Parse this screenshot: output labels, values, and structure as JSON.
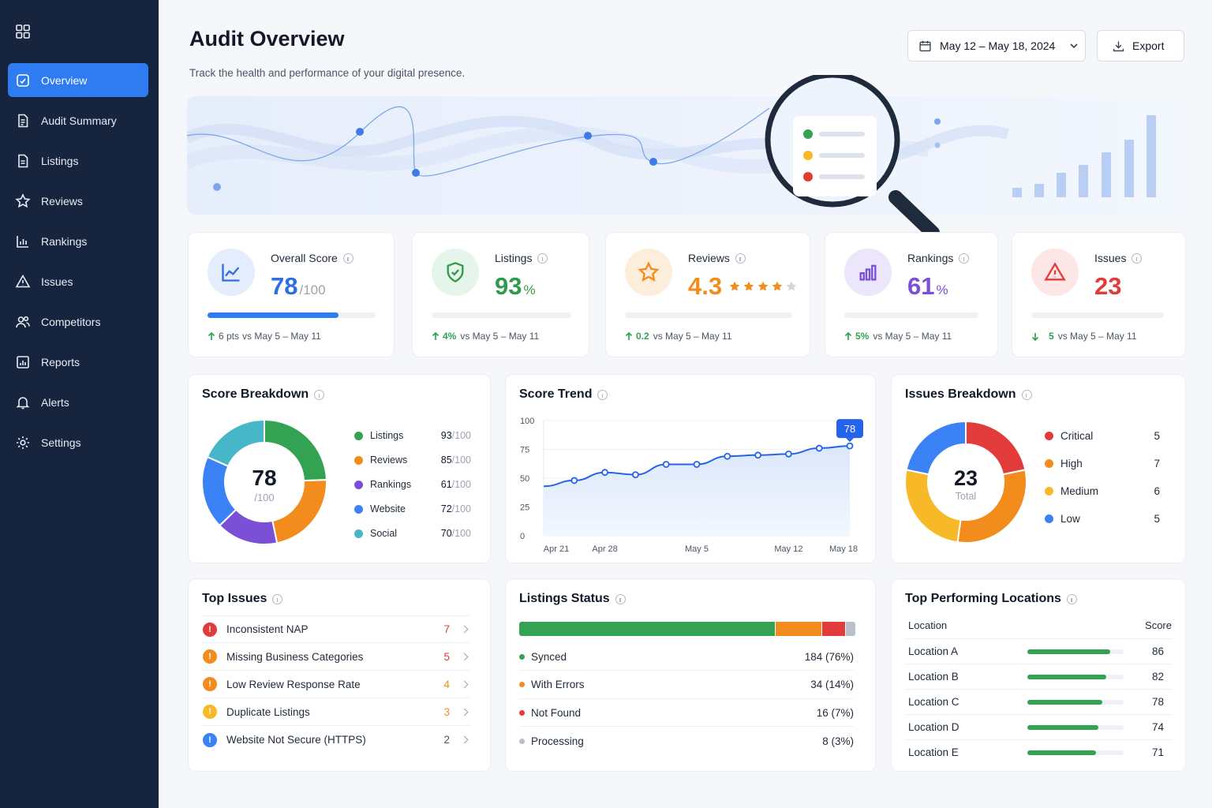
{
  "sidebar": {
    "items": [
      {
        "label": "Overview",
        "icon": "overview-icon",
        "active": true
      },
      {
        "label": "Audit Summary",
        "icon": "document-icon"
      },
      {
        "label": "Listings",
        "icon": "list-icon"
      },
      {
        "label": "Reviews",
        "icon": "star-icon"
      },
      {
        "label": "Rankings",
        "icon": "bar-chart-icon"
      },
      {
        "label": "Issues",
        "icon": "warning-icon"
      },
      {
        "label": "Competitors",
        "icon": "users-icon"
      },
      {
        "label": "Reports",
        "icon": "report-icon"
      },
      {
        "label": "Alerts",
        "icon": "bell-icon"
      },
      {
        "label": "Settings",
        "icon": "gear-icon"
      }
    ]
  },
  "header": {
    "title": "Audit Overview",
    "subtitle": "Track the health and performance of your digital presence.",
    "date_range": "May 12 – May 18, 2024",
    "export_label": "Export"
  },
  "kpis": {
    "overall": {
      "label": "Overall Score",
      "value": "78",
      "unit": "/100",
      "progress": 0.78,
      "delta": "6 pts",
      "compare": "vs May 5 – May 11"
    },
    "listings": {
      "label": "Listings",
      "value": "93",
      "unit": "%",
      "delta": "4%",
      "compare": "vs May 5 – May 11"
    },
    "reviews": {
      "label": "Reviews",
      "value": "4.3",
      "stars": 4,
      "delta": "0.2",
      "compare": "vs May 5 – May 11"
    },
    "rankings": {
      "label": "Rankings",
      "value": "61",
      "unit": "%",
      "delta": "5%",
      "compare": "vs May 5 – May 11"
    },
    "issues": {
      "label": "Issues",
      "value": "23",
      "delta": "5",
      "compare": "vs May 5 – May 11"
    }
  },
  "score_breakdown": {
    "title": "Score Breakdown",
    "center_value": "78",
    "center_label": "/100",
    "items": [
      {
        "name": "Listings",
        "score": "93",
        "max": "/100",
        "color": "#33a353"
      },
      {
        "name": "Reviews",
        "score": "85",
        "max": "/100",
        "color": "#f28c1c"
      },
      {
        "name": "Rankings",
        "score": "61",
        "max": "/100",
        "color": "#7b4fd6"
      },
      {
        "name": "Website",
        "score": "72",
        "max": "/100",
        "color": "#3b82f6"
      },
      {
        "name": "Social",
        "score": "70",
        "max": "/100",
        "color": "#45b7c9"
      }
    ]
  },
  "score_trend": {
    "title": "Score Trend",
    "callout": "78"
  },
  "chart_data": {
    "type": "line",
    "x": [
      "Apr 21",
      "Apr 24",
      "Apr 28",
      "May 1",
      "May 3",
      "May 5",
      "May 8",
      "May 10",
      "May 12",
      "May 15",
      "May 18"
    ],
    "tick_labels": [
      "Apr 21",
      "Apr 28",
      "May 5",
      "May 12",
      "May 18"
    ],
    "y_ticks": [
      "100",
      "75",
      "50",
      "25",
      "0"
    ],
    "values": [
      43,
      48,
      55,
      53,
      62,
      62,
      69,
      70,
      71,
      76,
      78
    ],
    "ylim": [
      0,
      100
    ]
  },
  "issues_breakdown": {
    "title": "Issues Breakdown",
    "total": "23",
    "total_label": "Total",
    "items": [
      {
        "name": "Critical",
        "count": "5",
        "color": "#e23b3b"
      },
      {
        "name": "High",
        "count": "7",
        "color": "#f28c1c"
      },
      {
        "name": "Medium",
        "count": "6",
        "color": "#f7b928"
      },
      {
        "name": "Low",
        "count": "5",
        "color": "#3b82f6"
      }
    ]
  },
  "top_issues": {
    "title": "Top Issues",
    "items": [
      {
        "name": "Inconsistent NAP",
        "count": "7",
        "color": "#e23b3b",
        "count_color": "#e23b3b"
      },
      {
        "name": "Missing Business Categories",
        "count": "5",
        "color": "#f28c1c",
        "count_color": "#e23b3b"
      },
      {
        "name": "Low Review Response Rate",
        "count": "4",
        "color": "#f28c1c",
        "count_color": "#f28c1c"
      },
      {
        "name": "Duplicate Listings",
        "count": "3",
        "color": "#f7b928",
        "count_color": "#f28c1c"
      },
      {
        "name": "Website Not Secure (HTTPS)",
        "count": "2",
        "color": "#3b82f6",
        "count_color": "#4b5563"
      }
    ]
  },
  "listings_status": {
    "title": "Listings Status",
    "items": [
      {
        "name": "Synced",
        "value": "184 (76%)",
        "share": 0.76,
        "color": "#33a353"
      },
      {
        "name": "With Errors",
        "value": "34 (14%)",
        "share": 0.14,
        "color": "#f28c1c"
      },
      {
        "name": "Not Found",
        "value": "16 (7%)",
        "share": 0.07,
        "color": "#e23b3b"
      },
      {
        "name": "Processing",
        "value": "8 (3%)",
        "share": 0.03,
        "color": "#b9c0cc"
      }
    ]
  },
  "top_locations": {
    "title": "Top Performing Locations",
    "col_location": "Location",
    "col_score": "Score",
    "items": [
      {
        "name": "Location A",
        "score": "86",
        "progress": 0.86
      },
      {
        "name": "Location B",
        "score": "82",
        "progress": 0.82
      },
      {
        "name": "Location C",
        "score": "78",
        "progress": 0.78
      },
      {
        "name": "Location D",
        "score": "74",
        "progress": 0.74
      },
      {
        "name": "Location E",
        "score": "71",
        "progress": 0.71
      }
    ]
  }
}
